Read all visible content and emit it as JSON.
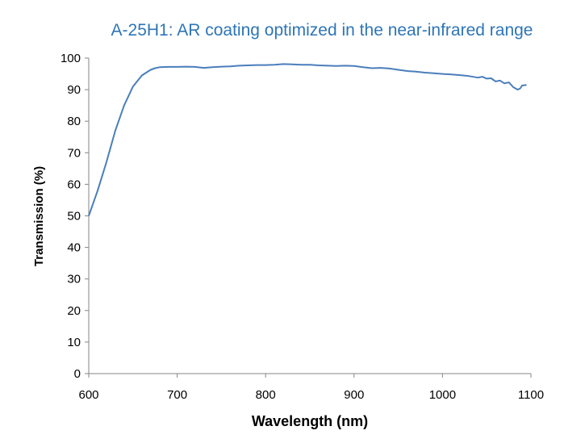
{
  "chart_data": {
    "type": "line",
    "title": "A-25H1: AR coating optimized in the near-infrared range",
    "xlabel": "Wavelength (nm)",
    "ylabel": "Transmission (%)",
    "xlim": [
      600,
      1100
    ],
    "ylim": [
      0,
      100
    ],
    "xticks": [
      "600",
      "700",
      "800",
      "900",
      "1000",
      "1100"
    ],
    "yticks": [
      "0",
      "10",
      "20",
      "30",
      "40",
      "50",
      "60",
      "70",
      "80",
      "90",
      "100"
    ],
    "grid": false,
    "legend": "none",
    "line_color": "#4a7ebb",
    "title_color": "#2e75b6",
    "series": [
      {
        "x": [
          600,
          610,
          620,
          630,
          640,
          650,
          660,
          670,
          675,
          680,
          690,
          700,
          710,
          720,
          730,
          740,
          750,
          760,
          770,
          780,
          790,
          800,
          810,
          820,
          830,
          840,
          850,
          860,
          870,
          880,
          890,
          900,
          910,
          920,
          930,
          940,
          950,
          960,
          970,
          980,
          990,
          1000,
          1010,
          1020,
          1030,
          1040,
          1045,
          1050,
          1055,
          1060,
          1065,
          1070,
          1075,
          1080,
          1085,
          1088,
          1090,
          1095
        ],
        "y": [
          50,
          58,
          67,
          77,
          85,
          91,
          94.5,
          96.3,
          96.8,
          97.1,
          97.2,
          97.2,
          97.3,
          97.2,
          96.9,
          97.1,
          97.3,
          97.4,
          97.6,
          97.7,
          97.8,
          97.8,
          97.9,
          98.1,
          98.0,
          97.9,
          97.9,
          97.7,
          97.6,
          97.5,
          97.6,
          97.5,
          97.1,
          96.8,
          96.9,
          96.7,
          96.3,
          95.9,
          95.7,
          95.4,
          95.2,
          95.0,
          94.8,
          94.6,
          94.3,
          93.8,
          94.1,
          93.5,
          93.6,
          92.6,
          92.9,
          92.0,
          92.3,
          90.8,
          90.0,
          90.4,
          91.3,
          91.5
        ]
      }
    ]
  }
}
